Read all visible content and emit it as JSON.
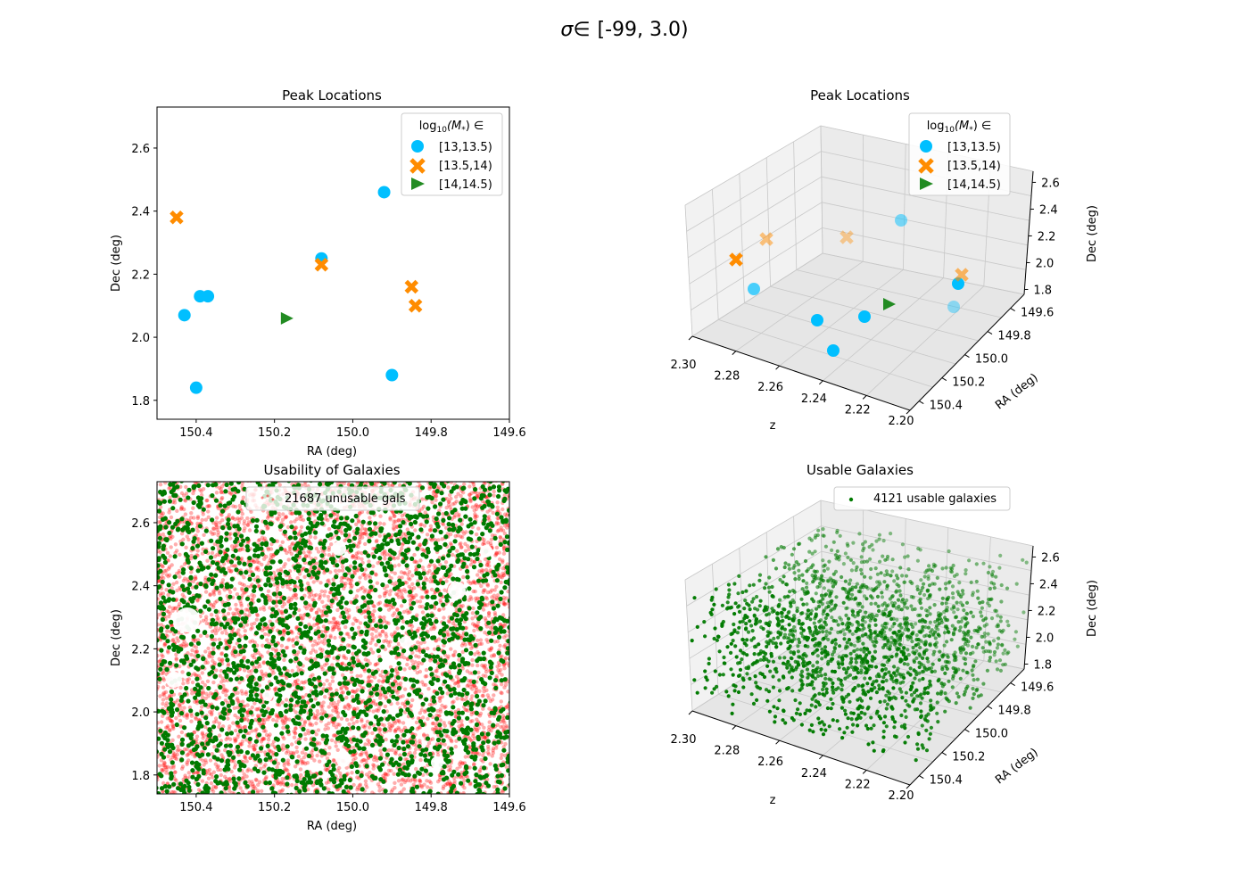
{
  "figure": {
    "title_symbol": "σ",
    "title_elem": "∈",
    "title_range": "[-99, 3.0)"
  },
  "chart_data": [
    {
      "id": "peaks2d",
      "type": "scatter",
      "title": "Peak Locations",
      "xlabel": "RA (deg)",
      "ylabel": "Dec (deg)",
      "xlim": [
        150.5,
        149.6
      ],
      "ylim": [
        1.74,
        2.73
      ],
      "xticks": [
        "150.4",
        "150.2",
        "150.0",
        "149.8",
        "149.6"
      ],
      "yticks": [
        "1.8",
        "2.0",
        "2.2",
        "2.4",
        "2.6"
      ],
      "grid": false,
      "legend": {
        "title_prefix": "log",
        "title_sub": "10",
        "title_mid": "(M",
        "title_star": "*",
        "title_suffix": ") ∈",
        "placement": "upper right"
      },
      "series": [
        {
          "name": "[13,13.5)",
          "marker": "circle",
          "color": "#00bfff",
          "points": [
            [
              150.43,
              2.07
            ],
            [
              150.39,
              2.13
            ],
            [
              150.37,
              2.13
            ],
            [
              150.4,
              1.84
            ],
            [
              150.08,
              2.25
            ],
            [
              149.92,
              2.46
            ],
            [
              149.9,
              1.88
            ]
          ]
        },
        {
          "name": "[13.5,14)",
          "marker": "x",
          "color": "#ff8c00",
          "points": [
            [
              150.45,
              2.38
            ],
            [
              150.08,
              2.23
            ],
            [
              149.85,
              2.16
            ],
            [
              149.84,
              2.1
            ]
          ]
        },
        {
          "name": "[14,14.5)",
          "marker": "triangle",
          "color": "#228b22",
          "points": [
            [
              150.17,
              2.06
            ]
          ]
        }
      ]
    },
    {
      "id": "peaks3d",
      "type": "scatter",
      "title": "Peak Locations",
      "xlabel": "z",
      "ylabel": "RA (deg)",
      "zlabel": "Dec (deg)",
      "xticks": [
        "2.30",
        "2.28",
        "2.26",
        "2.24",
        "2.22",
        "2.20"
      ],
      "yticks": [
        "149.6",
        "149.8",
        "150.0",
        "150.2",
        "150.4"
      ],
      "zticks": [
        "1.8",
        "2.0",
        "2.2",
        "2.4",
        "2.6"
      ],
      "legend": {
        "title_prefix": "log",
        "title_sub": "10",
        "title_mid": "(M",
        "title_star": "*",
        "title_suffix": ") ∈",
        "placement": "upper right",
        "entries": [
          "[13,13.5)",
          "[13.5,14)",
          "[14,14.5)"
        ]
      }
    },
    {
      "id": "usability",
      "type": "scatter",
      "title": "Usability of Galaxies",
      "xlabel": "RA (deg)",
      "ylabel": "Dec (deg)",
      "xlim": [
        150.5,
        149.6
      ],
      "ylim": [
        1.74,
        2.73
      ],
      "xticks": [
        "150.4",
        "150.2",
        "150.0",
        "149.8",
        "149.6"
      ],
      "yticks": [
        "1.8",
        "2.0",
        "2.2",
        "2.4",
        "2.6"
      ],
      "legend": {
        "label": "21687 unusable gals",
        "placement": "upper center"
      },
      "series": [
        {
          "name": "unusable",
          "color": "#ff0000",
          "count": 21687
        },
        {
          "name": "usable",
          "color": "#007a00",
          "count": 4121
        }
      ]
    },
    {
      "id": "usable3d",
      "type": "scatter",
      "title": "Usable Galaxies",
      "xlabel": "z",
      "ylabel": "RA (deg)",
      "zlabel": "Dec (deg)",
      "xticks": [
        "2.30",
        "2.28",
        "2.26",
        "2.24",
        "2.22",
        "2.20"
      ],
      "yticks": [
        "149.6",
        "149.8",
        "150.0",
        "150.2",
        "150.4"
      ],
      "zticks": [
        "1.8",
        "2.0",
        "2.2",
        "2.4",
        "2.6"
      ],
      "legend": {
        "label": "4121 usable galaxies",
        "placement": "upper right"
      },
      "color": "#007a00"
    }
  ]
}
